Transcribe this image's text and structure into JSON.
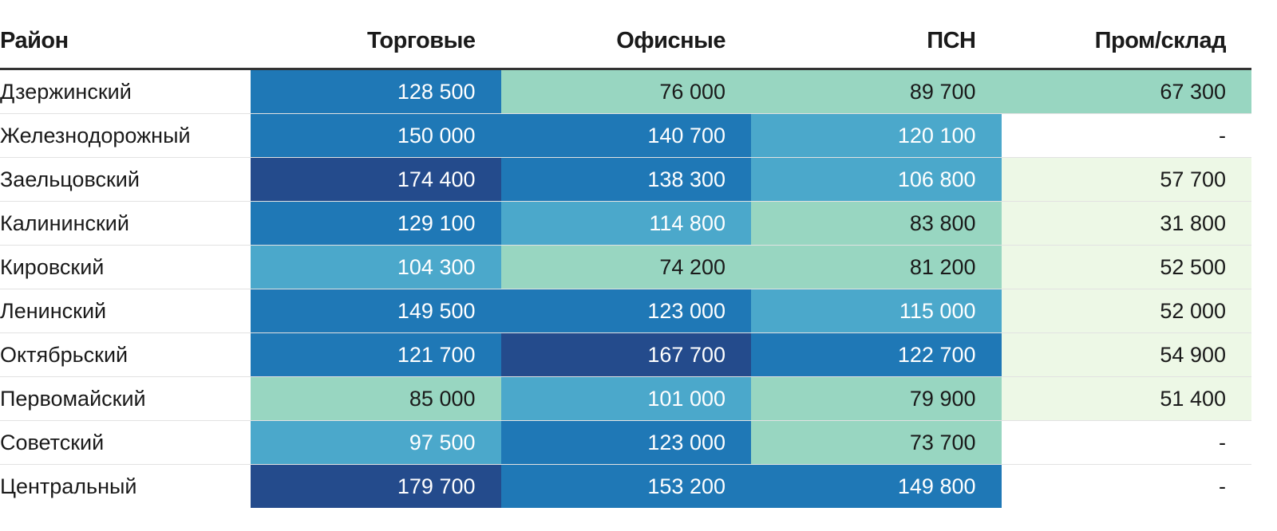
{
  "chart_data": {
    "type": "table",
    "title": "",
    "columns": [
      "Район",
      "Торговые",
      "Офисные",
      "ПСН",
      "Пром/склад"
    ],
    "rows": [
      {
        "district": "Дзержинский",
        "values": [
          128500,
          76000,
          89700,
          67300
        ],
        "labels": [
          "128 500",
          "76 000",
          "89 700",
          "67 300"
        ]
      },
      {
        "district": "Железнодорожный",
        "values": [
          150000,
          140700,
          120100,
          null
        ],
        "labels": [
          "150 000",
          "140 700",
          "120 100",
          "-"
        ]
      },
      {
        "district": "Заельцовский",
        "values": [
          174400,
          138300,
          106800,
          57700
        ],
        "labels": [
          "174 400",
          "138 300",
          "106 800",
          "57 700"
        ]
      },
      {
        "district": "Калининский",
        "values": [
          129100,
          114800,
          83800,
          31800
        ],
        "labels": [
          "129 100",
          "114 800",
          "83 800",
          "31 800"
        ]
      },
      {
        "district": "Кировский",
        "values": [
          104300,
          74200,
          81200,
          52500
        ],
        "labels": [
          "104 300",
          "74 200",
          "81 200",
          "52 500"
        ]
      },
      {
        "district": "Ленинский",
        "values": [
          149500,
          123000,
          115000,
          52000
        ],
        "labels": [
          "149 500",
          "123 000",
          "115 000",
          "52 000"
        ]
      },
      {
        "district": "Октябрьский",
        "values": [
          121700,
          167700,
          122700,
          54900
        ],
        "labels": [
          "121 700",
          "167 700",
          "122 700",
          "54 900"
        ]
      },
      {
        "district": "Первомайский",
        "values": [
          85000,
          101000,
          79900,
          51400
        ],
        "labels": [
          "85 000",
          "101 000",
          "79 900",
          "51 400"
        ]
      },
      {
        "district": "Советский",
        "values": [
          97500,
          123000,
          73700,
          null
        ],
        "labels": [
          "97 500",
          "123 000",
          "73 700",
          "-"
        ]
      },
      {
        "district": "Центральный",
        "values": [
          179700,
          153200,
          149800,
          null
        ],
        "labels": [
          "179 700",
          "153 200",
          "149 800",
          "-"
        ]
      }
    ],
    "color_scale": {
      "missing": "#ffffff",
      "bins": [
        {
          "min": 0,
          "max": 70000,
          "bg": "#edf8e6",
          "fg": "#1a1a1a"
        },
        {
          "min": 70000,
          "max": 95000,
          "bg": "#98d6c1",
          "fg": "#1a1a1a"
        },
        {
          "min": 95000,
          "max": 120000,
          "bg": "#4ba8cb",
          "fg": "#ffffff"
        },
        {
          "min": 120000,
          "max": 160000,
          "bg": "#1f78b6",
          "fg": "#ffffff"
        },
        {
          "min": 160000,
          "max": 1000000,
          "bg": "#244b8c",
          "fg": "#ffffff"
        }
      ],
      "overrides": [
        {
          "row": 0,
          "col": 3,
          "bg": "#98d6c1",
          "fg": "#1a1a1a"
        },
        {
          "row": 1,
          "col": 2,
          "bg": "#4ba8cb",
          "fg": "#ffffff"
        },
        {
          "row": 5,
          "col": 0,
          "bg": "#1f78b6",
          "fg": "#ffffff"
        }
      ]
    }
  }
}
